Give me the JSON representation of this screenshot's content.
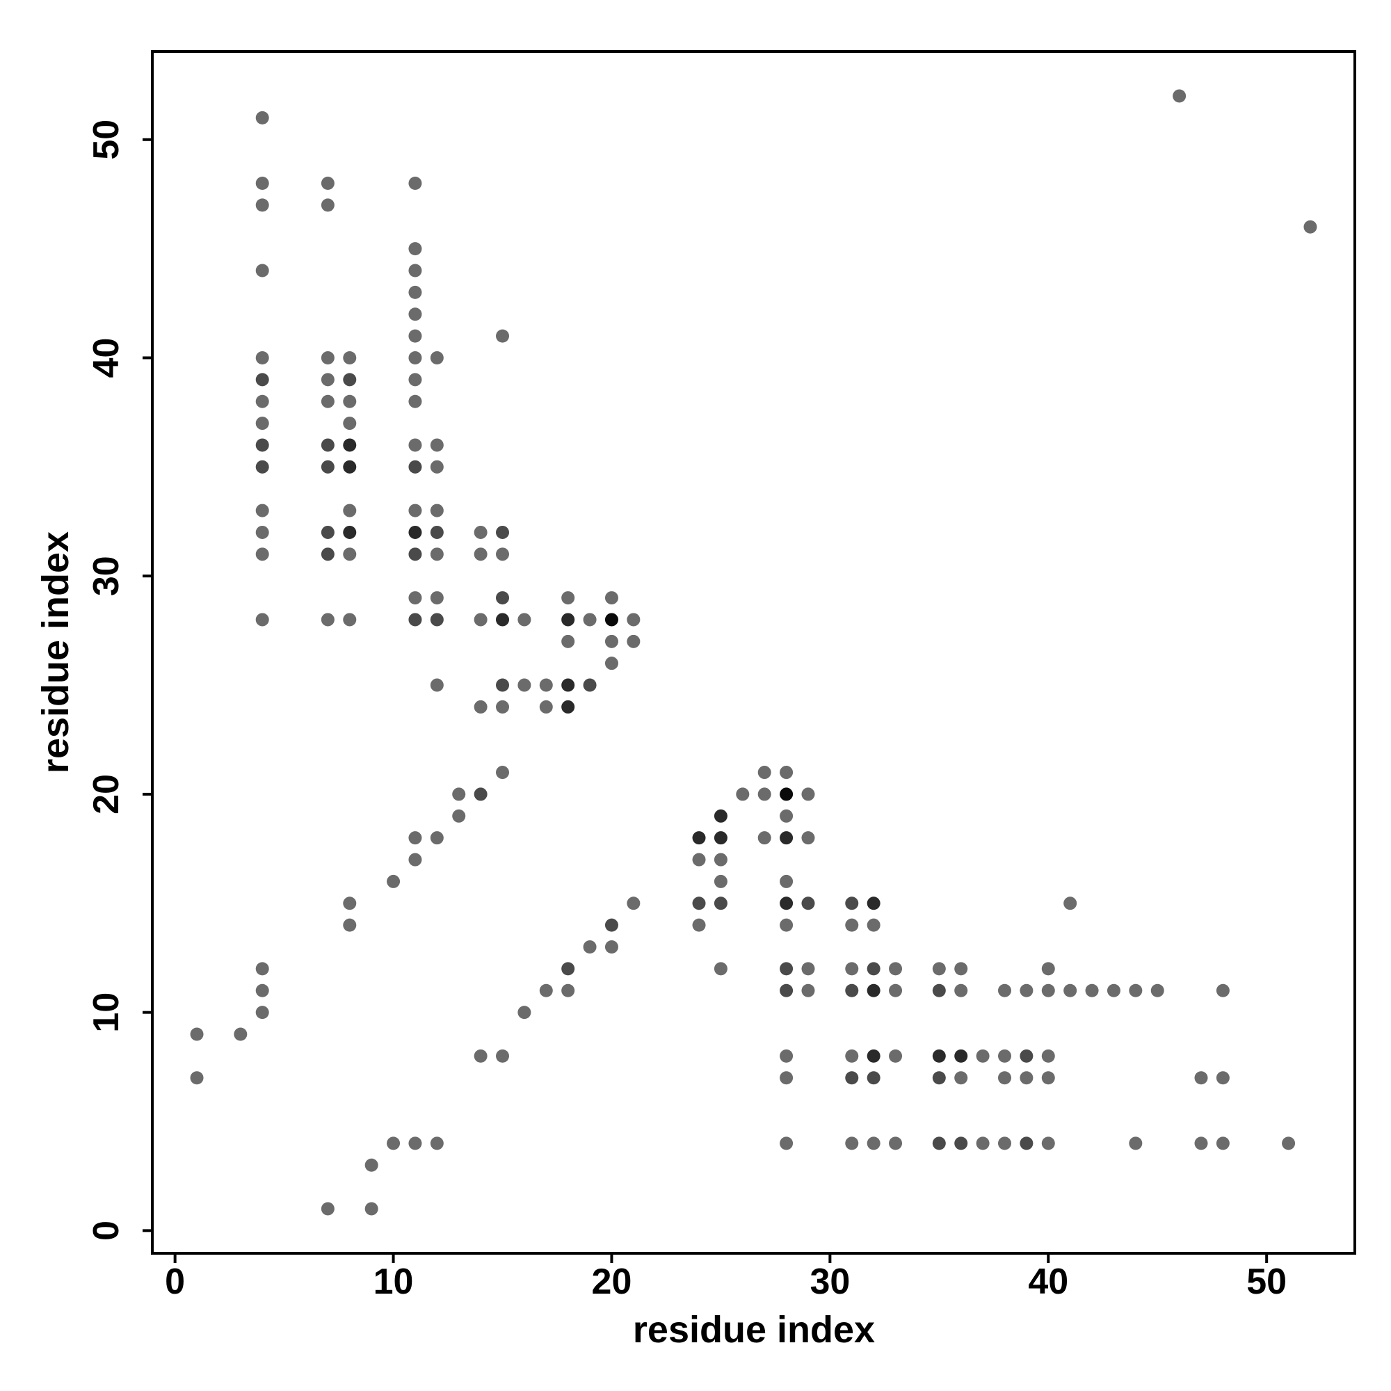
{
  "chart_data": {
    "type": "scatter",
    "xlabel": "residue index",
    "ylabel": "residue index",
    "xlim": [
      -1.04,
      54.04
    ],
    "ylim": [
      -1.04,
      54.04
    ],
    "xticks": [
      0,
      10,
      20,
      30,
      40,
      50
    ],
    "yticks": [
      0,
      10,
      20,
      30,
      40,
      50
    ],
    "x": [
      1,
      1,
      3,
      4,
      4,
      4,
      4,
      4,
      4,
      4,
      4,
      4,
      4,
      4,
      4,
      4,
      4,
      4,
      4,
      4,
      7,
      7,
      7,
      7,
      7,
      7,
      7,
      7,
      7,
      7,
      7,
      8,
      8,
      8,
      8,
      8,
      8,
      8,
      8,
      8,
      8,
      8,
      8,
      9,
      9,
      10,
      10,
      11,
      11,
      11,
      11,
      11,
      11,
      11,
      11,
      11,
      11,
      11,
      11,
      11,
      11,
      11,
      11,
      11,
      11,
      11,
      12,
      12,
      12,
      12,
      12,
      12,
      12,
      12,
      12,
      12,
      12,
      13,
      13,
      14,
      14,
      14,
      14,
      14,
      14,
      15,
      15,
      15,
      15,
      15,
      15,
      15,
      15,
      15,
      16,
      16,
      16,
      17,
      17,
      17,
      18,
      18,
      18,
      18,
      18,
      18,
      18,
      19,
      19,
      19,
      20,
      20,
      20,
      20,
      20,
      20,
      21,
      21,
      21,
      24,
      24,
      24,
      24,
      25,
      25,
      25,
      25,
      25,
      25,
      26,
      27,
      27,
      27,
      28,
      28,
      28,
      28,
      28,
      28,
      28,
      28,
      28,
      28,
      28,
      28,
      29,
      29,
      29,
      29,
      29,
      31,
      31,
      31,
      31,
      31,
      31,
      31,
      32,
      32,
      32,
      32,
      32,
      32,
      32,
      33,
      33,
      33,
      33,
      35,
      35,
      35,
      35,
      35,
      36,
      36,
      36,
      36,
      36,
      37,
      37,
      38,
      38,
      38,
      38,
      39,
      39,
      39,
      39,
      40,
      40,
      40,
      40,
      40,
      41,
      41,
      42,
      43,
      44,
      44,
      45,
      46,
      47,
      47,
      48,
      48,
      48,
      51,
      52
    ],
    "values": [
      9,
      7,
      9,
      51,
      48,
      47,
      44,
      40,
      39,
      38,
      37,
      36,
      35,
      33,
      32,
      31,
      28,
      12,
      11,
      10,
      48,
      47,
      40,
      39,
      38,
      36,
      35,
      32,
      31,
      28,
      1,
      40,
      39,
      38,
      37,
      36,
      35,
      33,
      32,
      31,
      28,
      15,
      14,
      3,
      1,
      16,
      4,
      48,
      45,
      44,
      43,
      42,
      41,
      40,
      39,
      38,
      36,
      35,
      33,
      32,
      31,
      29,
      28,
      18,
      17,
      4,
      40,
      36,
      35,
      33,
      32,
      31,
      29,
      28,
      25,
      18,
      4,
      20,
      19,
      32,
      31,
      28,
      24,
      20,
      8,
      41,
      32,
      31,
      29,
      28,
      25,
      24,
      21,
      8,
      28,
      25,
      10,
      25,
      24,
      11,
      29,
      28,
      27,
      25,
      24,
      12,
      11,
      28,
      25,
      13,
      29,
      28,
      27,
      26,
      14,
      13,
      28,
      27,
      15,
      18,
      17,
      15,
      14,
      19,
      18,
      17,
      16,
      15,
      12,
      20,
      21,
      20,
      18,
      21,
      20,
      19,
      18,
      16,
      15,
      14,
      12,
      11,
      8,
      7,
      4,
      20,
      18,
      15,
      12,
      11,
      15,
      14,
      12,
      11,
      8,
      7,
      4,
      15,
      14,
      12,
      11,
      8,
      7,
      4,
      12,
      11,
      8,
      4,
      12,
      11,
      8,
      7,
      4,
      12,
      11,
      8,
      7,
      4,
      8,
      4,
      11,
      8,
      7,
      4,
      11,
      8,
      7,
      4,
      12,
      11,
      8,
      7,
      4,
      15,
      11,
      11,
      11,
      11,
      4,
      11,
      52,
      7,
      4,
      11,
      7,
      4,
      4,
      46
    ],
    "colors": [
      "#6b6b6b",
      "#6b6b6b",
      "#6b6b6b",
      "#6b6b6b",
      "#6b6b6b",
      "#6b6b6b",
      "#6b6b6b",
      "#6b6b6b",
      "#4a4a4a",
      "#6b6b6b",
      "#6b6b6b",
      "#4a4a4a",
      "#4a4a4a",
      "#6b6b6b",
      "#6b6b6b",
      "#6b6b6b",
      "#6b6b6b",
      "#6b6b6b",
      "#6b6b6b",
      "#6b6b6b",
      "#6b6b6b",
      "#6b6b6b",
      "#6b6b6b",
      "#6b6b6b",
      "#6b6b6b",
      "#4a4a4a",
      "#4a4a4a",
      "#4a4a4a",
      "#4a4a4a",
      "#6b6b6b",
      "#6b6b6b",
      "#6b6b6b",
      "#4a4a4a",
      "#6b6b6b",
      "#6b6b6b",
      "#2a2a2a",
      "#2a2a2a",
      "#6b6b6b",
      "#2a2a2a",
      "#6b6b6b",
      "#6b6b6b",
      "#6b6b6b",
      "#6b6b6b",
      "#6b6b6b",
      "#6b6b6b",
      "#6b6b6b",
      "#6b6b6b",
      "#6b6b6b",
      "#6b6b6b",
      "#6b6b6b",
      "#6b6b6b",
      "#6b6b6b",
      "#6b6b6b",
      "#6b6b6b",
      "#6b6b6b",
      "#6b6b6b",
      "#6b6b6b",
      "#4a4a4a",
      "#6b6b6b",
      "#2a2a2a",
      "#4a4a4a",
      "#6b6b6b",
      "#4a4a4a",
      "#6b6b6b",
      "#6b6b6b",
      "#6b6b6b",
      "#6b6b6b",
      "#6b6b6b",
      "#6b6b6b",
      "#6b6b6b",
      "#4a4a4a",
      "#6b6b6b",
      "#6b6b6b",
      "#4a4a4a",
      "#6b6b6b",
      "#6b6b6b",
      "#6b6b6b",
      "#6b6b6b",
      "#6b6b6b",
      "#6b6b6b",
      "#6b6b6b",
      "#6b6b6b",
      "#6b6b6b",
      "#4a4a4a",
      "#6b6b6b",
      "#6b6b6b",
      "#4a4a4a",
      "#6b6b6b",
      "#4a4a4a",
      "#2a2a2a",
      "#4a4a4a",
      "#6b6b6b",
      "#6b6b6b",
      "#6b6b6b",
      "#6b6b6b",
      "#6b6b6b",
      "#6b6b6b",
      "#6b6b6b",
      "#6b6b6b",
      "#6b6b6b",
      "#6b6b6b",
      "#2a2a2a",
      "#6b6b6b",
      "#2a2a2a",
      "#2a2a2a",
      "#4a4a4a",
      "#6b6b6b",
      "#6b6b6b",
      "#4a4a4a",
      "#6b6b6b",
      "#6b6b6b",
      "#0a0a0a",
      "#6b6b6b",
      "#6b6b6b",
      "#4a4a4a",
      "#6b6b6b",
      "#6b6b6b",
      "#6b6b6b",
      "#6b6b6b",
      "#2a2a2a",
      "#6b6b6b",
      "#4a4a4a",
      "#6b6b6b",
      "#2a2a2a",
      "#2a2a2a",
      "#6b6b6b",
      "#6b6b6b",
      "#4a4a4a",
      "#6b6b6b",
      "#6b6b6b",
      "#6b6b6b",
      "#6b6b6b",
      "#6b6b6b",
      "#6b6b6b",
      "#0a0a0a",
      "#6b6b6b",
      "#2a2a2a",
      "#6b6b6b",
      "#2a2a2a",
      "#6b6b6b",
      "#4a4a4a",
      "#4a4a4a",
      "#6b6b6b",
      "#6b6b6b",
      "#6b6b6b",
      "#6b6b6b",
      "#6b6b6b",
      "#4a4a4a",
      "#6b6b6b",
      "#6b6b6b",
      "#4a4a4a",
      "#6b6b6b",
      "#6b6b6b",
      "#4a4a4a",
      "#6b6b6b",
      "#4a4a4a",
      "#6b6b6b",
      "#2a2a2a",
      "#6b6b6b",
      "#4a4a4a",
      "#2a2a2a",
      "#2a2a2a",
      "#4a4a4a",
      "#6b6b6b",
      "#6b6b6b",
      "#6b6b6b",
      "#6b6b6b",
      "#6b6b6b",
      "#6b6b6b",
      "#4a4a4a",
      "#2a2a2a",
      "#4a4a4a",
      "#4a4a4a",
      "#6b6b6b",
      "#6b6b6b",
      "#2a2a2a",
      "#6b6b6b",
      "#4a4a4a",
      "#6b6b6b",
      "#6b6b6b",
      "#6b6b6b",
      "#6b6b6b",
      "#6b6b6b",
      "#6b6b6b",
      "#6b6b6b",
      "#4a4a4a",
      "#6b6b6b",
      "#4a4a4a",
      "#6b6b6b",
      "#6b6b6b",
      "#6b6b6b",
      "#6b6b6b",
      "#6b6b6b",
      "#6b6b6b",
      "#6b6b6b",
      "#6b6b6b",
      "#6b6b6b",
      "#6b6b6b",
      "#6b6b6b",
      "#6b6b6b",
      "#6b6b6b",
      "#6b6b6b",
      "#6b6b6b",
      "#6b6b6b",
      "#6b6b6b",
      "#6b6b6b",
      "#6b6b6b",
      "#6b6b6b"
    ]
  }
}
